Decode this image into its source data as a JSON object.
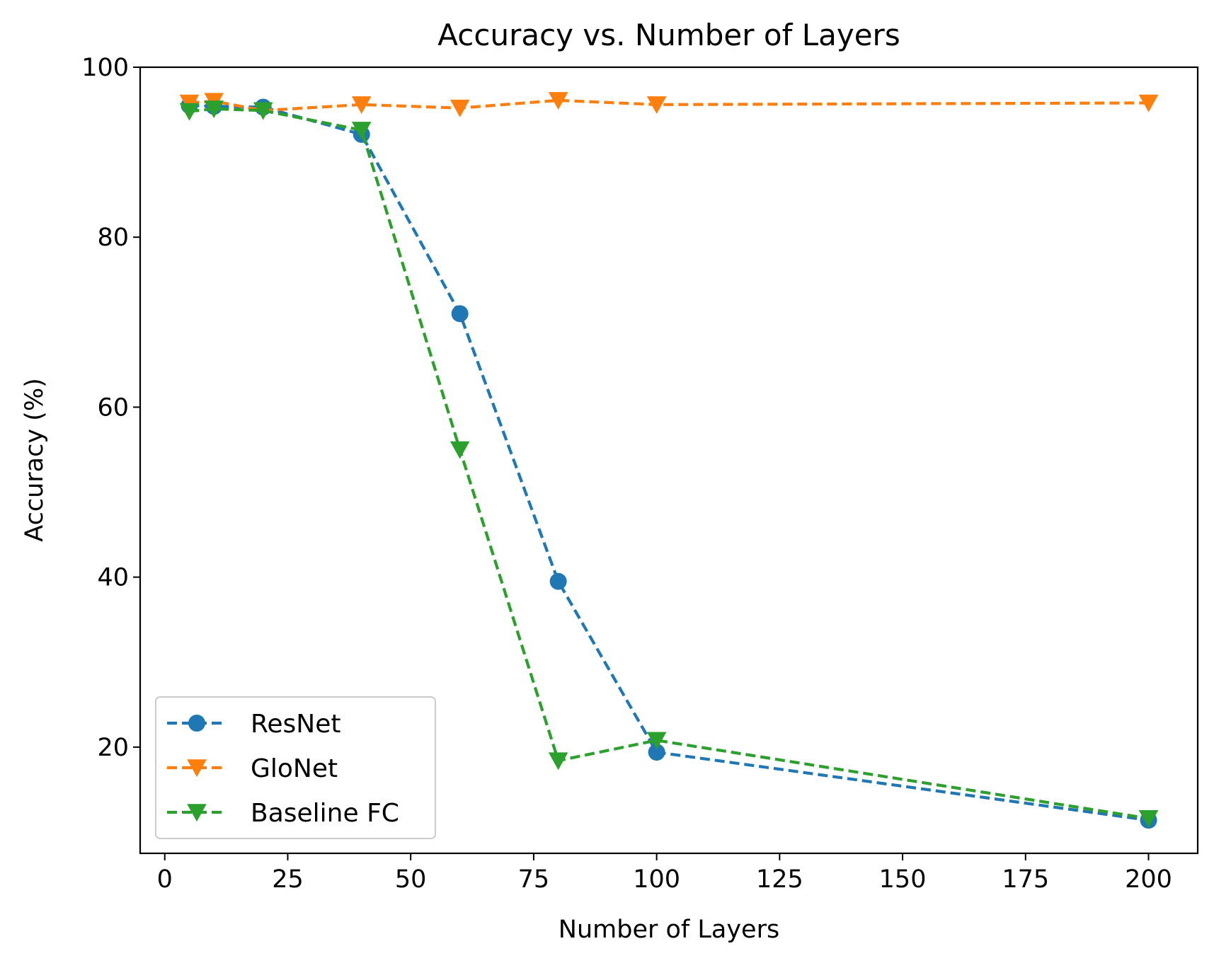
{
  "chart_data": {
    "type": "line",
    "title": "Accuracy vs. Number of Layers",
    "xlabel": "Number of Layers",
    "ylabel": "Accuracy (%)",
    "xlim": [
      -5,
      210
    ],
    "ylim": [
      7.5,
      100
    ],
    "xticks": [
      0,
      25,
      50,
      75,
      100,
      125,
      150,
      175,
      200
    ],
    "yticks": [
      20,
      40,
      60,
      80,
      100
    ],
    "grid": false,
    "legend_position": "lower-left",
    "line_style": "dashed",
    "series": [
      {
        "name": "ResNet",
        "color": "#1f77b4",
        "marker": "circle",
        "x": [
          5,
          10,
          20,
          40,
          60,
          80,
          100,
          200
        ],
        "y": [
          95.5,
          95.4,
          95.3,
          92.1,
          71.0,
          39.5,
          19.4,
          11.4
        ]
      },
      {
        "name": "GloNet",
        "color": "#ff7f0e",
        "marker": "triangle-down",
        "x": [
          5,
          10,
          20,
          40,
          60,
          80,
          100,
          200
        ],
        "y": [
          95.8,
          96.0,
          94.9,
          95.6,
          95.2,
          96.1,
          95.6,
          95.8
        ]
      },
      {
        "name": "Baseline FC",
        "color": "#2ca02c",
        "marker": "triangle-down",
        "x": [
          5,
          10,
          20,
          40,
          60,
          80,
          100,
          200
        ],
        "y": [
          94.8,
          95.1,
          94.9,
          92.6,
          55.0,
          18.4,
          20.8,
          11.6
        ]
      }
    ]
  }
}
